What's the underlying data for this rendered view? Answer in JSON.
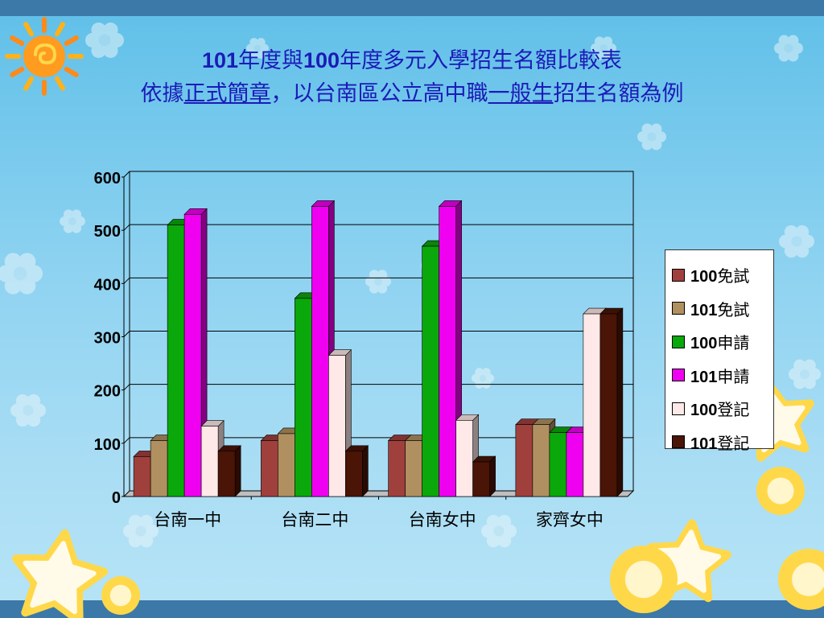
{
  "title_line1": {
    "a": "101",
    "b": "年度與",
    "c": "100",
    "d": "年度多元入學招生名額比較表"
  },
  "title_line2": {
    "a": "依據",
    "b": "正式簡章",
    "c": "，以台南區公立高中職",
    "d": "一般生",
    "e": "招生名額為例"
  },
  "chart_data": {
    "type": "bar",
    "categories": [
      "台南一中",
      "台南二中",
      "台南女中",
      "家齊女中"
    ],
    "ylim": [
      0,
      600
    ],
    "yticks": [
      "0",
      "100",
      "200",
      "300",
      "400",
      "500",
      "600"
    ],
    "grid": true,
    "legend_position": "right",
    "series": [
      {
        "name": "100免試",
        "num": "100",
        "suffix": "免試",
        "color": "#a0403c",
        "values": [
          75,
          105,
          105,
          135
        ]
      },
      {
        "name": "101免試",
        "num": "101",
        "suffix": "免試",
        "color": "#b09060",
        "values": [
          105,
          118,
          105,
          135
        ]
      },
      {
        "name": "100申請",
        "num": "100",
        "suffix": "申請",
        "color": "#0aa80a",
        "values": [
          510,
          372,
          470,
          120
        ]
      },
      {
        "name": "101申請",
        "num": "101",
        "suffix": "申請",
        "color": "#f000f0",
        "values": [
          530,
          545,
          545,
          120
        ]
      },
      {
        "name": "100登記",
        "num": "100",
        "suffix": "登記",
        "color": "#ffe8e8",
        "values": [
          132,
          265,
          143,
          343
        ]
      },
      {
        "name": "101登記",
        "num": "101",
        "suffix": "登記",
        "color": "#4a1406",
        "values": [
          85,
          85,
          65,
          343
        ]
      }
    ]
  }
}
